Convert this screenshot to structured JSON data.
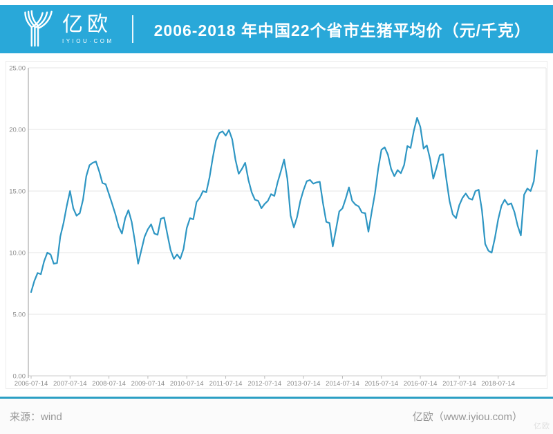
{
  "header": {
    "logo_text": "亿欧",
    "logo_subtext": "IYIOU·COM",
    "title": "2006-2018 年中国22个省市生猪平均价（元/千克）",
    "bg_color": "#29a8d9"
  },
  "footer": {
    "source_label": "来源：wind",
    "credit_label": "亿欧（www.iyiou.com）",
    "watermark": "亿欧"
  },
  "chart_data": {
    "type": "line",
    "title": "2006-2018 年中国22个省市生猪平均价（元/千克）",
    "ylabel": "元/千克",
    "xlabel": "",
    "ylim": [
      0,
      25
    ],
    "grid": true,
    "legend": false,
    "series_color": "#2e96c3",
    "grid_color": "#e6e6e6",
    "axis_color": "#999999",
    "tick_label_color": "#8c8c8c",
    "y_ticks": [
      "25.00",
      "20.00",
      "15.00",
      "10.00",
      "5.00",
      "0.00"
    ],
    "x_tick_labels": [
      "2006-07-14",
      "2007-07-14",
      "2008-07-14",
      "2009-07-14",
      "2010-07-14",
      "2011-07-14",
      "2012-07-14",
      "2013-07-14",
      "2014-07-14",
      "2015-07-14",
      "2016-07-14",
      "2017-07-14",
      "2018-07-14"
    ],
    "x": [
      "2006-07",
      "2006-08",
      "2006-09",
      "2006-10",
      "2006-11",
      "2006-12",
      "2007-01",
      "2007-02",
      "2007-03",
      "2007-04",
      "2007-05",
      "2007-06",
      "2007-07",
      "2007-08",
      "2007-09",
      "2007-10",
      "2007-11",
      "2007-12",
      "2008-01",
      "2008-02",
      "2008-03",
      "2008-04",
      "2008-05",
      "2008-06",
      "2008-07",
      "2008-08",
      "2008-09",
      "2008-10",
      "2008-11",
      "2008-12",
      "2009-01",
      "2009-02",
      "2009-03",
      "2009-04",
      "2009-05",
      "2009-06",
      "2009-07",
      "2009-08",
      "2009-09",
      "2009-10",
      "2009-11",
      "2009-12",
      "2010-01",
      "2010-02",
      "2010-03",
      "2010-04",
      "2010-05",
      "2010-06",
      "2010-07",
      "2010-08",
      "2010-09",
      "2010-10",
      "2010-11",
      "2010-12",
      "2011-01",
      "2011-02",
      "2011-03",
      "2011-04",
      "2011-05",
      "2011-06",
      "2011-07",
      "2011-08",
      "2011-09",
      "2011-10",
      "2011-11",
      "2011-12",
      "2012-01",
      "2012-02",
      "2012-03",
      "2012-04",
      "2012-05",
      "2012-06",
      "2012-07",
      "2012-08",
      "2012-09",
      "2012-10",
      "2012-11",
      "2012-12",
      "2013-01",
      "2013-02",
      "2013-03",
      "2013-04",
      "2013-05",
      "2013-06",
      "2013-07",
      "2013-08",
      "2013-09",
      "2013-10",
      "2013-11",
      "2013-12",
      "2014-01",
      "2014-02",
      "2014-03",
      "2014-04",
      "2014-05",
      "2014-06",
      "2014-07",
      "2014-08",
      "2014-09",
      "2014-10",
      "2014-11",
      "2014-12",
      "2015-01",
      "2015-02",
      "2015-03",
      "2015-04",
      "2015-05",
      "2015-06",
      "2015-07",
      "2015-08",
      "2015-09",
      "2015-10",
      "2015-11",
      "2015-12",
      "2016-01",
      "2016-02",
      "2016-03",
      "2016-04",
      "2016-05",
      "2016-06",
      "2016-07",
      "2016-08",
      "2016-09",
      "2016-10",
      "2016-11",
      "2016-12",
      "2017-01",
      "2017-02",
      "2017-03",
      "2017-04",
      "2017-05",
      "2017-06",
      "2017-07",
      "2017-08",
      "2017-09",
      "2017-10",
      "2017-11",
      "2017-12",
      "2018-01",
      "2018-02",
      "2018-03",
      "2018-04",
      "2018-05",
      "2018-06",
      "2018-07",
      "2018-08",
      "2018-09",
      "2018-10",
      "2018-11",
      "2018-12",
      "2019-01",
      "2019-02",
      "2019-03",
      "2019-04",
      "2019-05",
      "2019-06",
      "2019-07"
    ],
    "values": [
      6.8,
      7.7,
      8.35,
      8.25,
      9.3,
      10.0,
      9.85,
      9.1,
      9.15,
      11.3,
      12.4,
      13.8,
      15.0,
      13.6,
      13.0,
      13.2,
      14.3,
      16.2,
      17.1,
      17.3,
      17.4,
      16.6,
      15.65,
      15.55,
      14.75,
      13.95,
      13.1,
      12.1,
      11.55,
      12.8,
      13.45,
      12.5,
      10.9,
      9.1,
      10.2,
      11.3,
      11.9,
      12.3,
      11.55,
      11.45,
      12.75,
      12.85,
      11.5,
      10.2,
      9.5,
      9.85,
      9.5,
      10.3,
      12.0,
      12.8,
      12.7,
      14.1,
      14.45,
      15.0,
      14.9,
      16.1,
      17.7,
      19.1,
      19.7,
      19.85,
      19.5,
      19.95,
      19.2,
      17.55,
      16.4,
      16.8,
      17.3,
      15.9,
      14.9,
      14.3,
      14.2,
      13.6,
      13.95,
      14.2,
      14.75,
      14.6,
      15.7,
      16.6,
      17.55,
      16.0,
      13.0,
      12.05,
      12.9,
      14.2,
      15.1,
      15.8,
      15.9,
      15.6,
      15.7,
      15.75,
      14.0,
      12.5,
      12.4,
      10.5,
      11.9,
      13.35,
      13.6,
      14.4,
      15.3,
      14.2,
      13.9,
      13.75,
      13.25,
      13.2,
      11.7,
      13.3,
      14.8,
      16.8,
      18.35,
      18.55,
      17.95,
      16.8,
      16.2,
      16.7,
      16.45,
      17.1,
      18.65,
      18.5,
      19.9,
      20.95,
      20.2,
      18.45,
      18.7,
      17.6,
      16.0,
      16.9,
      17.9,
      18.0,
      16.0,
      14.2,
      13.1,
      12.8,
      13.85,
      14.45,
      14.8,
      14.4,
      14.3,
      15.0,
      15.1,
      13.45,
      10.7,
      10.15,
      10.0,
      11.2,
      12.7,
      13.8,
      14.3,
      13.9,
      14.0,
      13.3,
      12.2,
      11.4,
      14.7,
      15.2,
      15.0,
      15.8,
      18.3
    ]
  }
}
